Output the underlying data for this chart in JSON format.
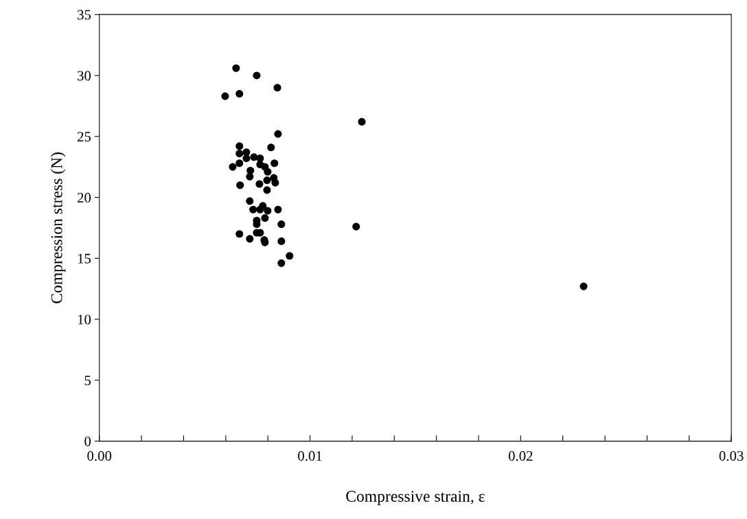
{
  "chart_data": {
    "type": "scatter",
    "xlabel": "Compressive strain, ε",
    "ylabel": "Compression stress (N)",
    "xlim": [
      0,
      0.03
    ],
    "ylim": [
      0,
      35
    ],
    "xticks": [
      {
        "value": 0,
        "label": "0.00"
      },
      {
        "value": 0.002,
        "label": null
      },
      {
        "value": 0.004,
        "label": null
      },
      {
        "value": 0.006,
        "label": null
      },
      {
        "value": 0.008,
        "label": null
      },
      {
        "value": 0.01,
        "label": "0.01"
      },
      {
        "value": 0.012,
        "label": null
      },
      {
        "value": 0.014,
        "label": null
      },
      {
        "value": 0.016,
        "label": null
      },
      {
        "value": 0.018,
        "label": null
      },
      {
        "value": 0.02,
        "label": "0.02"
      },
      {
        "value": 0.022,
        "label": null
      },
      {
        "value": 0.024,
        "label": null
      },
      {
        "value": 0.026,
        "label": null
      },
      {
        "value": 0.028,
        "label": null
      },
      {
        "value": 0.03,
        "label": "0.03"
      }
    ],
    "yticks": [
      0,
      5,
      10,
      15,
      20,
      25,
      30,
      35
    ],
    "grid": false,
    "marker": "circle",
    "series": [
      {
        "color": "#000000",
        "x": [
          0.00597,
          0.00649,
          0.00665,
          0.00747,
          0.00845,
          0.00848,
          0.01246,
          0.01219,
          0.02299,
          0.00665,
          0.00815,
          0.00665,
          0.00698,
          0.00698,
          0.00734,
          0.00763,
          0.00665,
          0.00633,
          0.00763,
          0.00786,
          0.00831,
          0.00799,
          0.00717,
          0.00714,
          0.00828,
          0.00835,
          0.00796,
          0.00668,
          0.0076,
          0.00796,
          0.00714,
          0.0073,
          0.00763,
          0.00776,
          0.00799,
          0.00848,
          0.00747,
          0.00786,
          0.00747,
          0.00864,
          0.00665,
          0.00747,
          0.00763,
          0.00714,
          0.00783,
          0.00786,
          0.00864,
          0.00903,
          0.00864
        ],
        "values": [
          28.3,
          30.6,
          28.5,
          30.0,
          29.0,
          25.2,
          26.2,
          17.6,
          12.7,
          24.2,
          24.1,
          23.6,
          23.7,
          23.2,
          23.3,
          23.2,
          22.8,
          22.5,
          22.7,
          22.5,
          22.8,
          22.1,
          22.2,
          21.7,
          21.6,
          21.2,
          21.4,
          21.0,
          21.1,
          20.6,
          19.7,
          19.0,
          19.0,
          19.3,
          18.9,
          19.0,
          18.1,
          18.3,
          17.8,
          17.8,
          17.0,
          17.1,
          17.1,
          16.6,
          16.5,
          16.3,
          16.4,
          15.2,
          14.6
        ]
      }
    ]
  }
}
